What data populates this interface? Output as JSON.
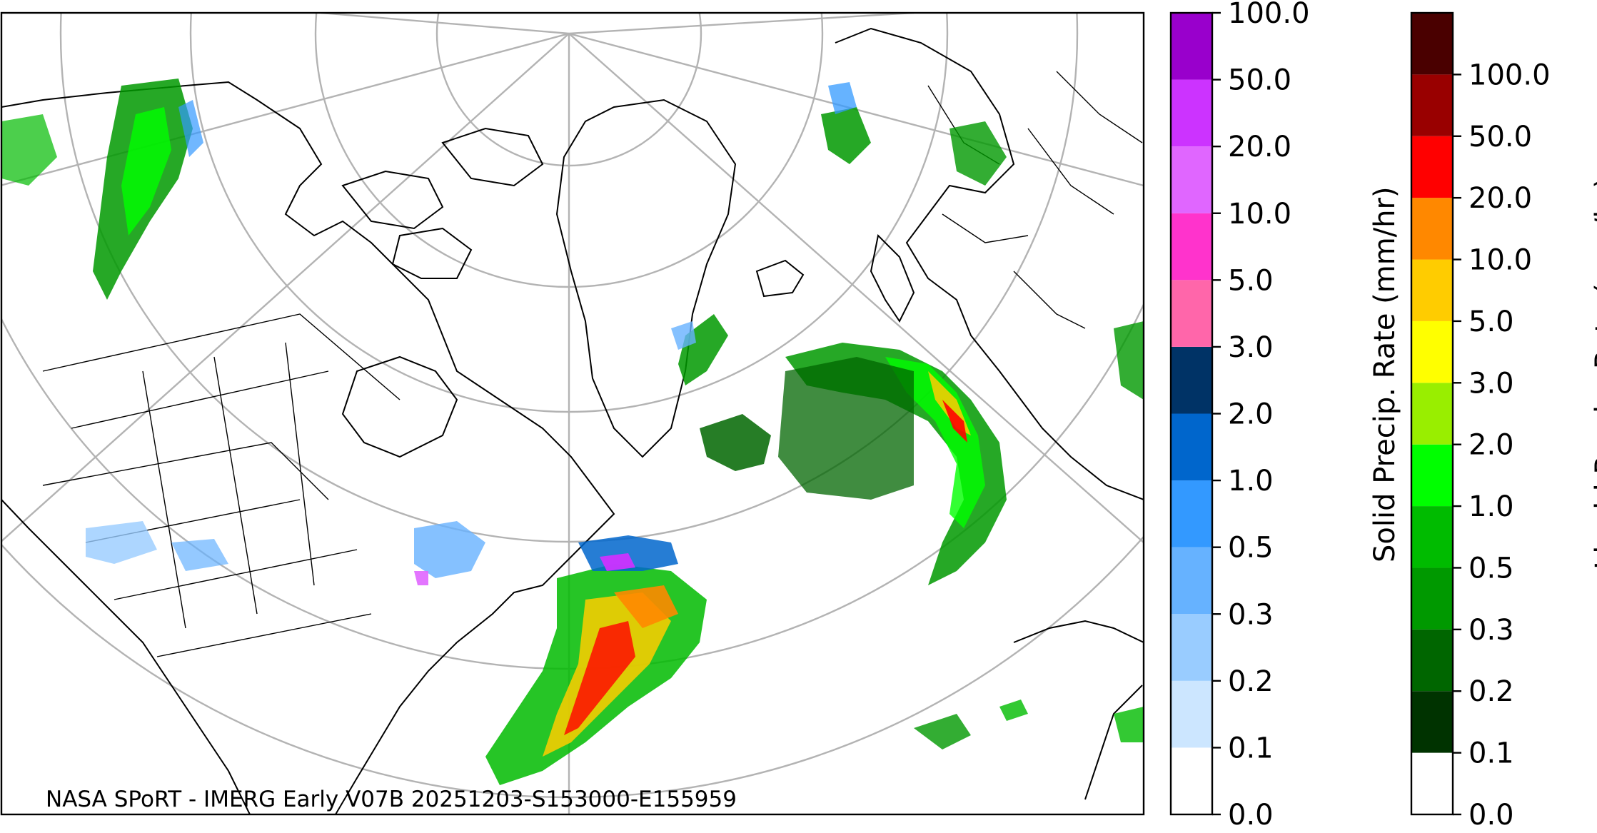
{
  "map": {
    "credit": "NASA SPoRT - IMERG Early V07B 20251203-S153000-E155959",
    "colors": {
      "land_outline": "#000000",
      "graticule": "#b3b3b3",
      "background": "#ffffff"
    }
  },
  "solid_colorbar": {
    "title": "Solid Precip. Rate (mm/hr)",
    "ticks": [
      "0.0",
      "0.1",
      "0.2",
      "0.3",
      "0.5",
      "1.0",
      "2.0",
      "3.0",
      "5.0",
      "10.0",
      "20.0",
      "50.0",
      "100.0"
    ],
    "colors": [
      "#ffffff",
      "#cce6ff",
      "#99ccff",
      "#66b2ff",
      "#3399ff",
      "#0066cc",
      "#003366",
      "#ff66aa",
      "#ff33cc",
      "#e066ff",
      "#cc33ff",
      "#9900cc"
    ]
  },
  "liquid_colorbar": {
    "title": "Liquid Precip. Rate (mm/hr)",
    "ticks": [
      "0.0",
      "0.1",
      "0.2",
      "0.3",
      "0.5",
      "1.0",
      "2.0",
      "3.0",
      "5.0",
      "10.0",
      "20.0",
      "50.0",
      "100.0"
    ],
    "colors": [
      "#ffffff",
      "#003300",
      "#006600",
      "#009900",
      "#00bb00",
      "#00ff00",
      "#99ee00",
      "#ffff00",
      "#ffcc00",
      "#ff8800",
      "#ff0000",
      "#990000",
      "#4a0000"
    ]
  }
}
